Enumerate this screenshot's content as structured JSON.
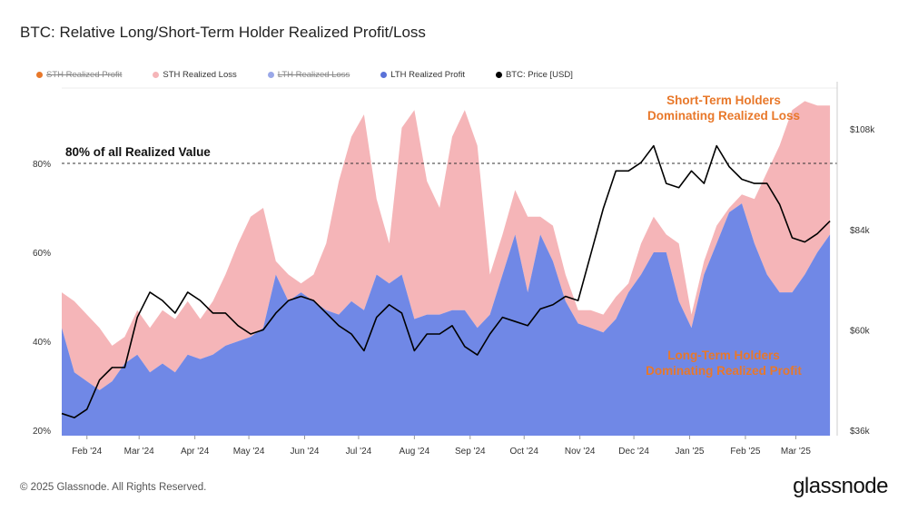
{
  "title": "BTC: Relative Long/Short-Term Holder Realized Profit/Loss",
  "footer": "© 2025 Glassnode. All Rights Reserved.",
  "brand": "glassnode",
  "legend": [
    {
      "label": "STH Realized Profit",
      "color": "#e8782a",
      "hidden": true
    },
    {
      "label": "STH Realized Loss",
      "color": "#f5b5b8",
      "hidden": false
    },
    {
      "label": "LTH Realized Loss",
      "color": "#9aa8e8",
      "hidden": true
    },
    {
      "label": "LTH Realized Profit",
      "color": "#5a72d8",
      "hidden": false
    },
    {
      "label": "BTC: Price [USD]",
      "color": "#000000",
      "hidden": false
    }
  ],
  "chart_data": {
    "type": "area",
    "title": "BTC: Relative Long/Short-Term Holder Realized Profit/Loss",
    "xlim": [
      "2024-01-18",
      "2025-03-24"
    ],
    "y_left": {
      "ylim": [
        20,
        98
      ],
      "unit": "%",
      "ticks": [
        "20%",
        "40%",
        "60%",
        "80%"
      ],
      "tick_values": [
        20,
        40,
        60,
        80
      ]
    },
    "y_right": {
      "ylim": [
        36,
        108
      ],
      "unit": "USD k",
      "ticks": [
        "$36k",
        "$60k",
        "$84k",
        "$108k"
      ],
      "tick_values": [
        36,
        60,
        84,
        108
      ]
    },
    "x_ticks": [
      {
        "label": "Feb '24",
        "date": "2024-02-01"
      },
      {
        "label": "Mar '24",
        "date": "2024-03-01"
      },
      {
        "label": "Apr '24",
        "date": "2024-04-01"
      },
      {
        "label": "May '24",
        "date": "2024-05-01"
      },
      {
        "label": "Jun '24",
        "date": "2024-06-01"
      },
      {
        "label": "Jul '24",
        "date": "2024-07-01"
      },
      {
        "label": "Aug '24",
        "date": "2024-08-01"
      },
      {
        "label": "Sep '24",
        "date": "2024-09-01"
      },
      {
        "label": "Oct '24",
        "date": "2024-10-01"
      },
      {
        "label": "Nov '24",
        "date": "2024-11-01"
      },
      {
        "label": "Dec '24",
        "date": "2024-12-01"
      },
      {
        "label": "Jan '25",
        "date": "2025-01-01"
      },
      {
        "label": "Feb '25",
        "date": "2025-02-01"
      },
      {
        "label": "Mar '25",
        "date": "2025-03-01"
      }
    ],
    "reference_line": {
      "value": 80,
      "label": "80% of all Realized Value"
    },
    "annotations": [
      {
        "text": [
          "Short-Term Holders",
          "Dominating Realized Loss"
        ]
      },
      {
        "text": [
          "Long-Term Holders",
          "Dominating Realized Profit"
        ]
      }
    ],
    "dates": [
      "2024-01-18",
      "2024-01-25",
      "2024-02-01",
      "2024-02-08",
      "2024-02-15",
      "2024-02-22",
      "2024-02-29",
      "2024-03-07",
      "2024-03-14",
      "2024-03-21",
      "2024-03-28",
      "2024-04-04",
      "2024-04-11",
      "2024-04-18",
      "2024-04-25",
      "2024-05-02",
      "2024-05-09",
      "2024-05-16",
      "2024-05-23",
      "2024-05-30",
      "2024-06-06",
      "2024-06-13",
      "2024-06-20",
      "2024-06-27",
      "2024-07-04",
      "2024-07-11",
      "2024-07-18",
      "2024-07-25",
      "2024-08-01",
      "2024-08-08",
      "2024-08-15",
      "2024-08-22",
      "2024-08-29",
      "2024-09-05",
      "2024-09-12",
      "2024-09-19",
      "2024-09-26",
      "2024-10-03",
      "2024-10-10",
      "2024-10-17",
      "2024-10-24",
      "2024-10-31",
      "2024-11-07",
      "2024-11-14",
      "2024-11-21",
      "2024-11-28",
      "2024-12-05",
      "2024-12-12",
      "2024-12-19",
      "2024-12-26",
      "2025-01-02",
      "2025-01-09",
      "2025-01-16",
      "2025-01-23",
      "2025-01-30",
      "2025-02-06",
      "2025-02-13",
      "2025-02-20",
      "2025-02-27",
      "2025-03-06",
      "2025-03-13",
      "2025-03-20"
    ],
    "series": [
      {
        "name": "LTH Realized Profit",
        "color": "#7088e6",
        "unit": "%",
        "values": [
          43,
          33,
          31,
          29,
          31,
          35,
          37,
          33,
          35,
          33,
          37,
          36,
          37,
          39,
          40,
          41,
          43,
          55,
          49,
          51,
          49,
          47,
          46,
          49,
          47,
          55,
          53,
          55,
          45,
          46,
          46,
          47,
          47,
          43,
          46,
          55,
          64,
          51,
          64,
          58,
          49,
          44,
          43,
          42,
          45,
          51,
          55,
          60,
          60,
          49,
          43,
          55,
          62,
          69,
          71,
          62,
          55,
          51,
          51,
          55,
          60,
          64
        ]
      },
      {
        "name": "STH Realized Loss",
        "color": "#f5b5b8",
        "unit": "% (cumulative top)",
        "values": [
          51,
          49,
          46,
          43,
          39,
          41,
          47,
          43,
          47,
          45,
          49,
          45,
          49,
          55,
          62,
          68,
          70,
          58,
          55,
          53,
          55,
          62,
          76,
          86,
          91,
          72,
          62,
          88,
          92,
          76,
          70,
          86,
          92,
          84,
          55,
          64,
          74,
          68,
          68,
          66,
          55,
          47,
          47,
          46,
          50,
          53,
          62,
          68,
          64,
          62,
          46,
          58,
          66,
          70,
          73,
          72,
          78,
          84,
          92,
          94,
          93,
          93
        ]
      },
      {
        "name": "BTC: Price [USD]",
        "color": "#000000",
        "unit": "USD k",
        "values": [
          40,
          39,
          41,
          48,
          51,
          51,
          63,
          69,
          67,
          64,
          69,
          67,
          64,
          64,
          61,
          59,
          60,
          64,
          67,
          68,
          67,
          64,
          61,
          59,
          55,
          63,
          66,
          64,
          55,
          59,
          59,
          61,
          56,
          54,
          59,
          63,
          62,
          61,
          65,
          66,
          68,
          67,
          78,
          89,
          98,
          98,
          100,
          104,
          95,
          94,
          98,
          95,
          104,
          99,
          96,
          95,
          95,
          90,
          82,
          81,
          83,
          86
        ]
      }
    ]
  }
}
